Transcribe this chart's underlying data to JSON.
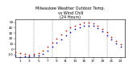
{
  "title_line1": "Milwaukee Weather Outdoor Temp.",
  "title_line2": "vs Wind Chill",
  "title_line3": "(24 Hours)",
  "title_fontsize": 3.5,
  "background_color": "#ffffff",
  "plot_bg_color": "#ffffff",
  "grid_color": "#888888",
  "xlim": [
    0,
    24
  ],
  "ylim": [
    -15,
    55
  ],
  "yticks": [
    -10,
    0,
    10,
    20,
    30,
    40,
    50
  ],
  "ytick_labels": [
    "-10",
    "0",
    "10",
    "20",
    "30",
    "40",
    "50"
  ],
  "xtick_positions": [
    1,
    3,
    5,
    7,
    9,
    11,
    13,
    15,
    17,
    19,
    21,
    23
  ],
  "xtick_labels": [
    "1",
    "3",
    "5",
    "7",
    "9",
    "11",
    "13",
    "15",
    "17",
    "19",
    "21",
    "23"
  ],
  "vgrid_positions": [
    4,
    8,
    12,
    16,
    20,
    24
  ],
  "temp_x": [
    0,
    1,
    2,
    3,
    4,
    5,
    6,
    7,
    8,
    9,
    10,
    11,
    12,
    13,
    14,
    15,
    16,
    17,
    18,
    19,
    20,
    21,
    22,
    23
  ],
  "temp_y": [
    -5,
    -7,
    -9,
    -10,
    -9,
    -7,
    -3,
    5,
    13,
    20,
    27,
    34,
    40,
    44,
    47,
    49,
    50,
    48,
    44,
    38,
    31,
    23,
    16,
    10
  ],
  "windchill_x": [
    0,
    1,
    2,
    3,
    4,
    5,
    6,
    7,
    8,
    9,
    10,
    11,
    12,
    13,
    14,
    15,
    16,
    17,
    18,
    19,
    20,
    21,
    22,
    23
  ],
  "windchill_y": [
    -12,
    -14,
    -13,
    -13,
    -12,
    -11,
    -8,
    -2,
    5,
    12,
    19,
    26,
    32,
    37,
    41,
    43,
    44,
    43,
    39,
    33,
    26,
    18,
    11,
    5
  ],
  "temp_color": "#cc0000",
  "windchill_color": "#0000cc",
  "black_color": "#000000",
  "marker_size": 1.5,
  "tick_fontsize": 3.0
}
